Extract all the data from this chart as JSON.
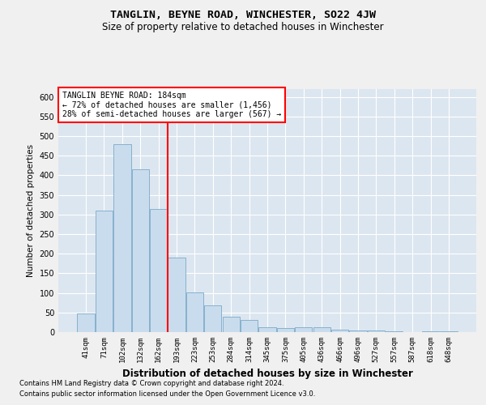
{
  "title": "TANGLIN, BEYNE ROAD, WINCHESTER, SO22 4JW",
  "subtitle": "Size of property relative to detached houses in Winchester",
  "xlabel": "Distribution of detached houses by size in Winchester",
  "ylabel": "Number of detached properties",
  "bar_color": "#c9dced",
  "bar_edge_color": "#7aaac8",
  "background_color": "#dce6f0",
  "grid_color": "#ffffff",
  "fig_background": "#f0f0f0",
  "categories": [
    "41sqm",
    "71sqm",
    "102sqm",
    "132sqm",
    "162sqm",
    "193sqm",
    "223sqm",
    "253sqm",
    "284sqm",
    "314sqm",
    "345sqm",
    "375sqm",
    "405sqm",
    "436sqm",
    "466sqm",
    "496sqm",
    "527sqm",
    "557sqm",
    "587sqm",
    "618sqm",
    "648sqm"
  ],
  "values": [
    47,
    311,
    480,
    415,
    315,
    190,
    102,
    68,
    39,
    32,
    13,
    11,
    13,
    12,
    7,
    4,
    4,
    2,
    0,
    3,
    2
  ],
  "ylim": [
    0,
    620
  ],
  "yticks": [
    0,
    50,
    100,
    150,
    200,
    250,
    300,
    350,
    400,
    450,
    500,
    550,
    600
  ],
  "vline_x_index": 5,
  "annotation_title": "TANGLIN BEYNE ROAD: 184sqm",
  "annotation_line1": "← 72% of detached houses are smaller (1,456)",
  "annotation_line2": "28% of semi-detached houses are larger (567) →",
  "footnote1": "Contains HM Land Registry data © Crown copyright and database right 2024.",
  "footnote2": "Contains public sector information licensed under the Open Government Licence v3.0."
}
